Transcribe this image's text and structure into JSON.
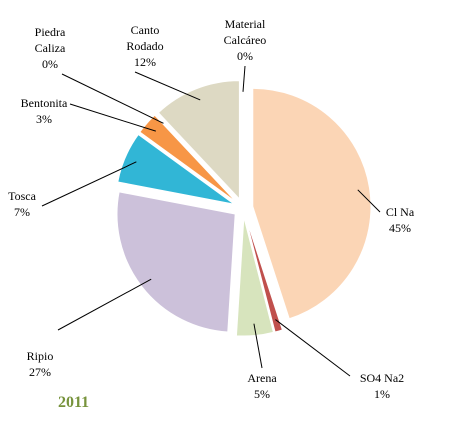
{
  "chart_data": {
    "type": "pie",
    "title": "2011",
    "categories": [
      "Cl Na",
      "SO4 Na2",
      "Arena",
      "Ripio",
      "Tosca",
      "Bentonita",
      "Piedra Caliza",
      "Canto Rodado",
      "Material Calcáreo"
    ],
    "values": [
      45,
      1,
      5,
      27,
      7,
      3,
      0,
      12,
      0
    ],
    "value_labels": [
      "45%",
      "1%",
      "5%",
      "27%",
      "7%",
      "3%",
      "0%",
      "12%",
      "0%"
    ],
    "colors": [
      "#fbd5b5",
      "#c0504d",
      "#d7e4bd",
      "#ccc1da",
      "#31b6d6",
      "#f79646",
      "#e46c0a",
      "#ddd9c3",
      "#c3d69b"
    ]
  }
}
